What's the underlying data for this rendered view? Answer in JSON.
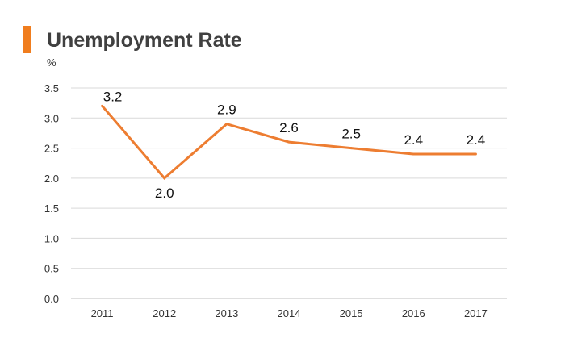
{
  "title": "Unemployment Rate",
  "colors": {
    "accent": "#f07d1e",
    "line": "#ed7d31",
    "grid": "#d9d9d9",
    "axis_text": "#333333",
    "label_text": "#111111"
  },
  "chart_data": {
    "type": "line",
    "title": "Unemployment Rate",
    "ylabel": "%",
    "xlabel": "",
    "categories": [
      "2011",
      "2012",
      "2013",
      "2014",
      "2015",
      "2016",
      "2017"
    ],
    "series": [
      {
        "values": [
          3.2,
          2.0,
          2.9,
          2.6,
          2.5,
          2.4,
          2.4
        ],
        "data_labels": [
          "3.2",
          "2.0",
          "2.9",
          "2.6",
          "2.5",
          "2.4",
          "2.4"
        ]
      }
    ],
    "ylim": [
      0,
      3.5
    ],
    "y_ticks": [
      "0.0",
      "0.5",
      "1.0",
      "1.5",
      "2.0",
      "2.5",
      "3.0",
      "3.5"
    ],
    "grid": true,
    "legend": "none"
  }
}
